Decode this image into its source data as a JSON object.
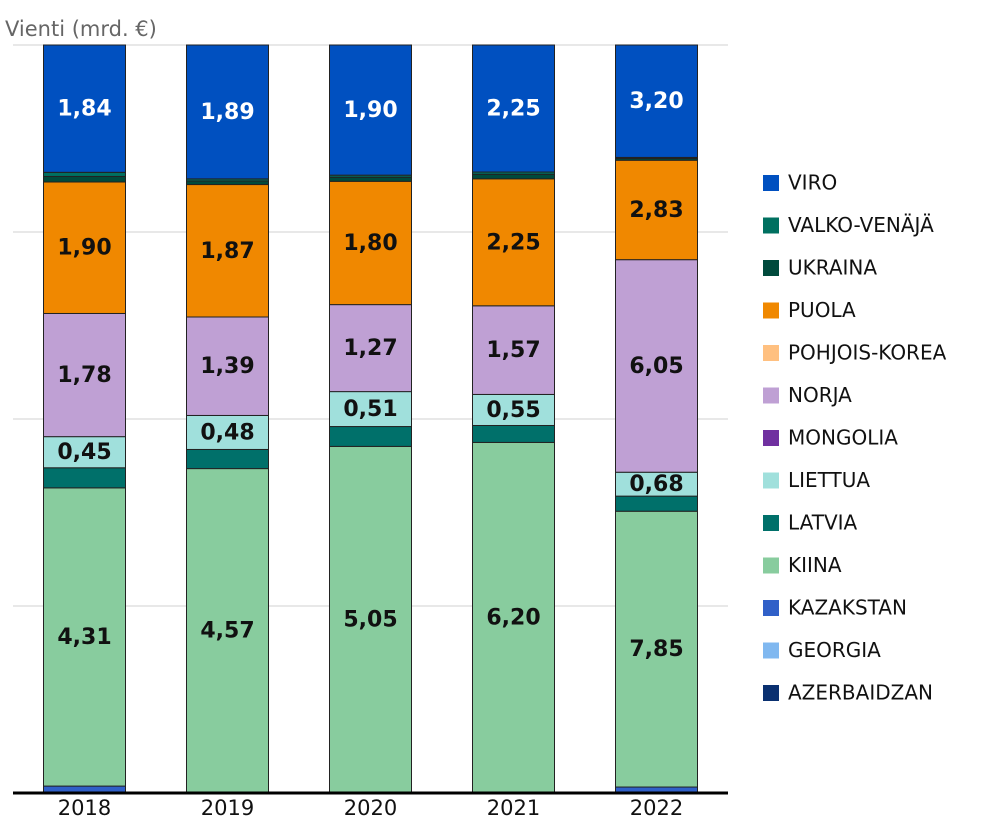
{
  "chart_data": {
    "type": "bar",
    "stack_mode": "percent",
    "title": "Vienti (mrd. €)",
    "categories": [
      "2018",
      "2019",
      "2020",
      "2021",
      "2022"
    ],
    "ylim": [
      0,
      100
    ],
    "yticks": [
      0,
      25,
      50,
      75,
      100
    ],
    "grid": true,
    "legend": "right",
    "series": [
      {
        "name": "AZERBAIDZAN",
        "color": "#0a3070",
        "values": [
          0,
          0,
          0,
          0,
          0
        ]
      },
      {
        "name": "GEORGIA",
        "color": "#80b8f0",
        "values": [
          0,
          0,
          0,
          0,
          0
        ]
      },
      {
        "name": "KAZAKSTAN",
        "color": "#3060c8",
        "values": [
          0.1,
          0.01,
          0.01,
          0.01,
          0.17
        ]
      },
      {
        "name": "KIINA",
        "color": "#88cc9e",
        "values": [
          4.31,
          4.57,
          5.05,
          6.2,
          7.85
        ],
        "value_labels": [
          "4,31",
          "4,57",
          "5,05",
          "6,20",
          "7,85"
        ]
      },
      {
        "name": "LATVIA",
        "color": "#00706a",
        "values": [
          0.29,
          0.27,
          0.29,
          0.3,
          0.43
        ]
      },
      {
        "name": "LIETTUA",
        "color": "#a0e0dc",
        "values": [
          0.45,
          0.48,
          0.51,
          0.55,
          0.68
        ],
        "value_labels": [
          "0,45",
          "0,48",
          "0,51",
          "0,55",
          "0,68"
        ]
      },
      {
        "name": "MONGOLIA",
        "color": "#7030a0",
        "values": [
          0,
          0,
          0,
          0,
          0
        ]
      },
      {
        "name": "NORJA",
        "color": "#bfa0d4",
        "values": [
          1.78,
          1.39,
          1.27,
          1.57,
          6.05
        ],
        "value_labels": [
          "1,78",
          "1,39",
          "1,27",
          "1,57",
          "6,05"
        ]
      },
      {
        "name": "POHJOIS-KOREA",
        "color": "#ffc080",
        "values": [
          0,
          0,
          0,
          0,
          0
        ]
      },
      {
        "name": "PUOLA",
        "color": "#f08800",
        "values": [
          1.9,
          1.87,
          1.8,
          2.25,
          2.83
        ],
        "value_labels": [
          "1,90",
          "1,87",
          "1,80",
          "2,25",
          "2,83"
        ]
      },
      {
        "name": "UKRAINA",
        "color": "#004a3c",
        "values": [
          0.08,
          0.05,
          0.06,
          0.08,
          0.05
        ]
      },
      {
        "name": "VALKO-VENÄJÄ",
        "color": "#007060",
        "values": [
          0.06,
          0.03,
          0.03,
          0.04,
          0.03
        ]
      },
      {
        "name": "VIRO",
        "color": "#0050c0",
        "label_color": "#ffffff",
        "values": [
          1.84,
          1.89,
          1.9,
          2.25,
          3.2
        ],
        "value_labels": [
          "1,84",
          "1,89",
          "1,90",
          "2,25",
          "3,20"
        ]
      }
    ]
  }
}
